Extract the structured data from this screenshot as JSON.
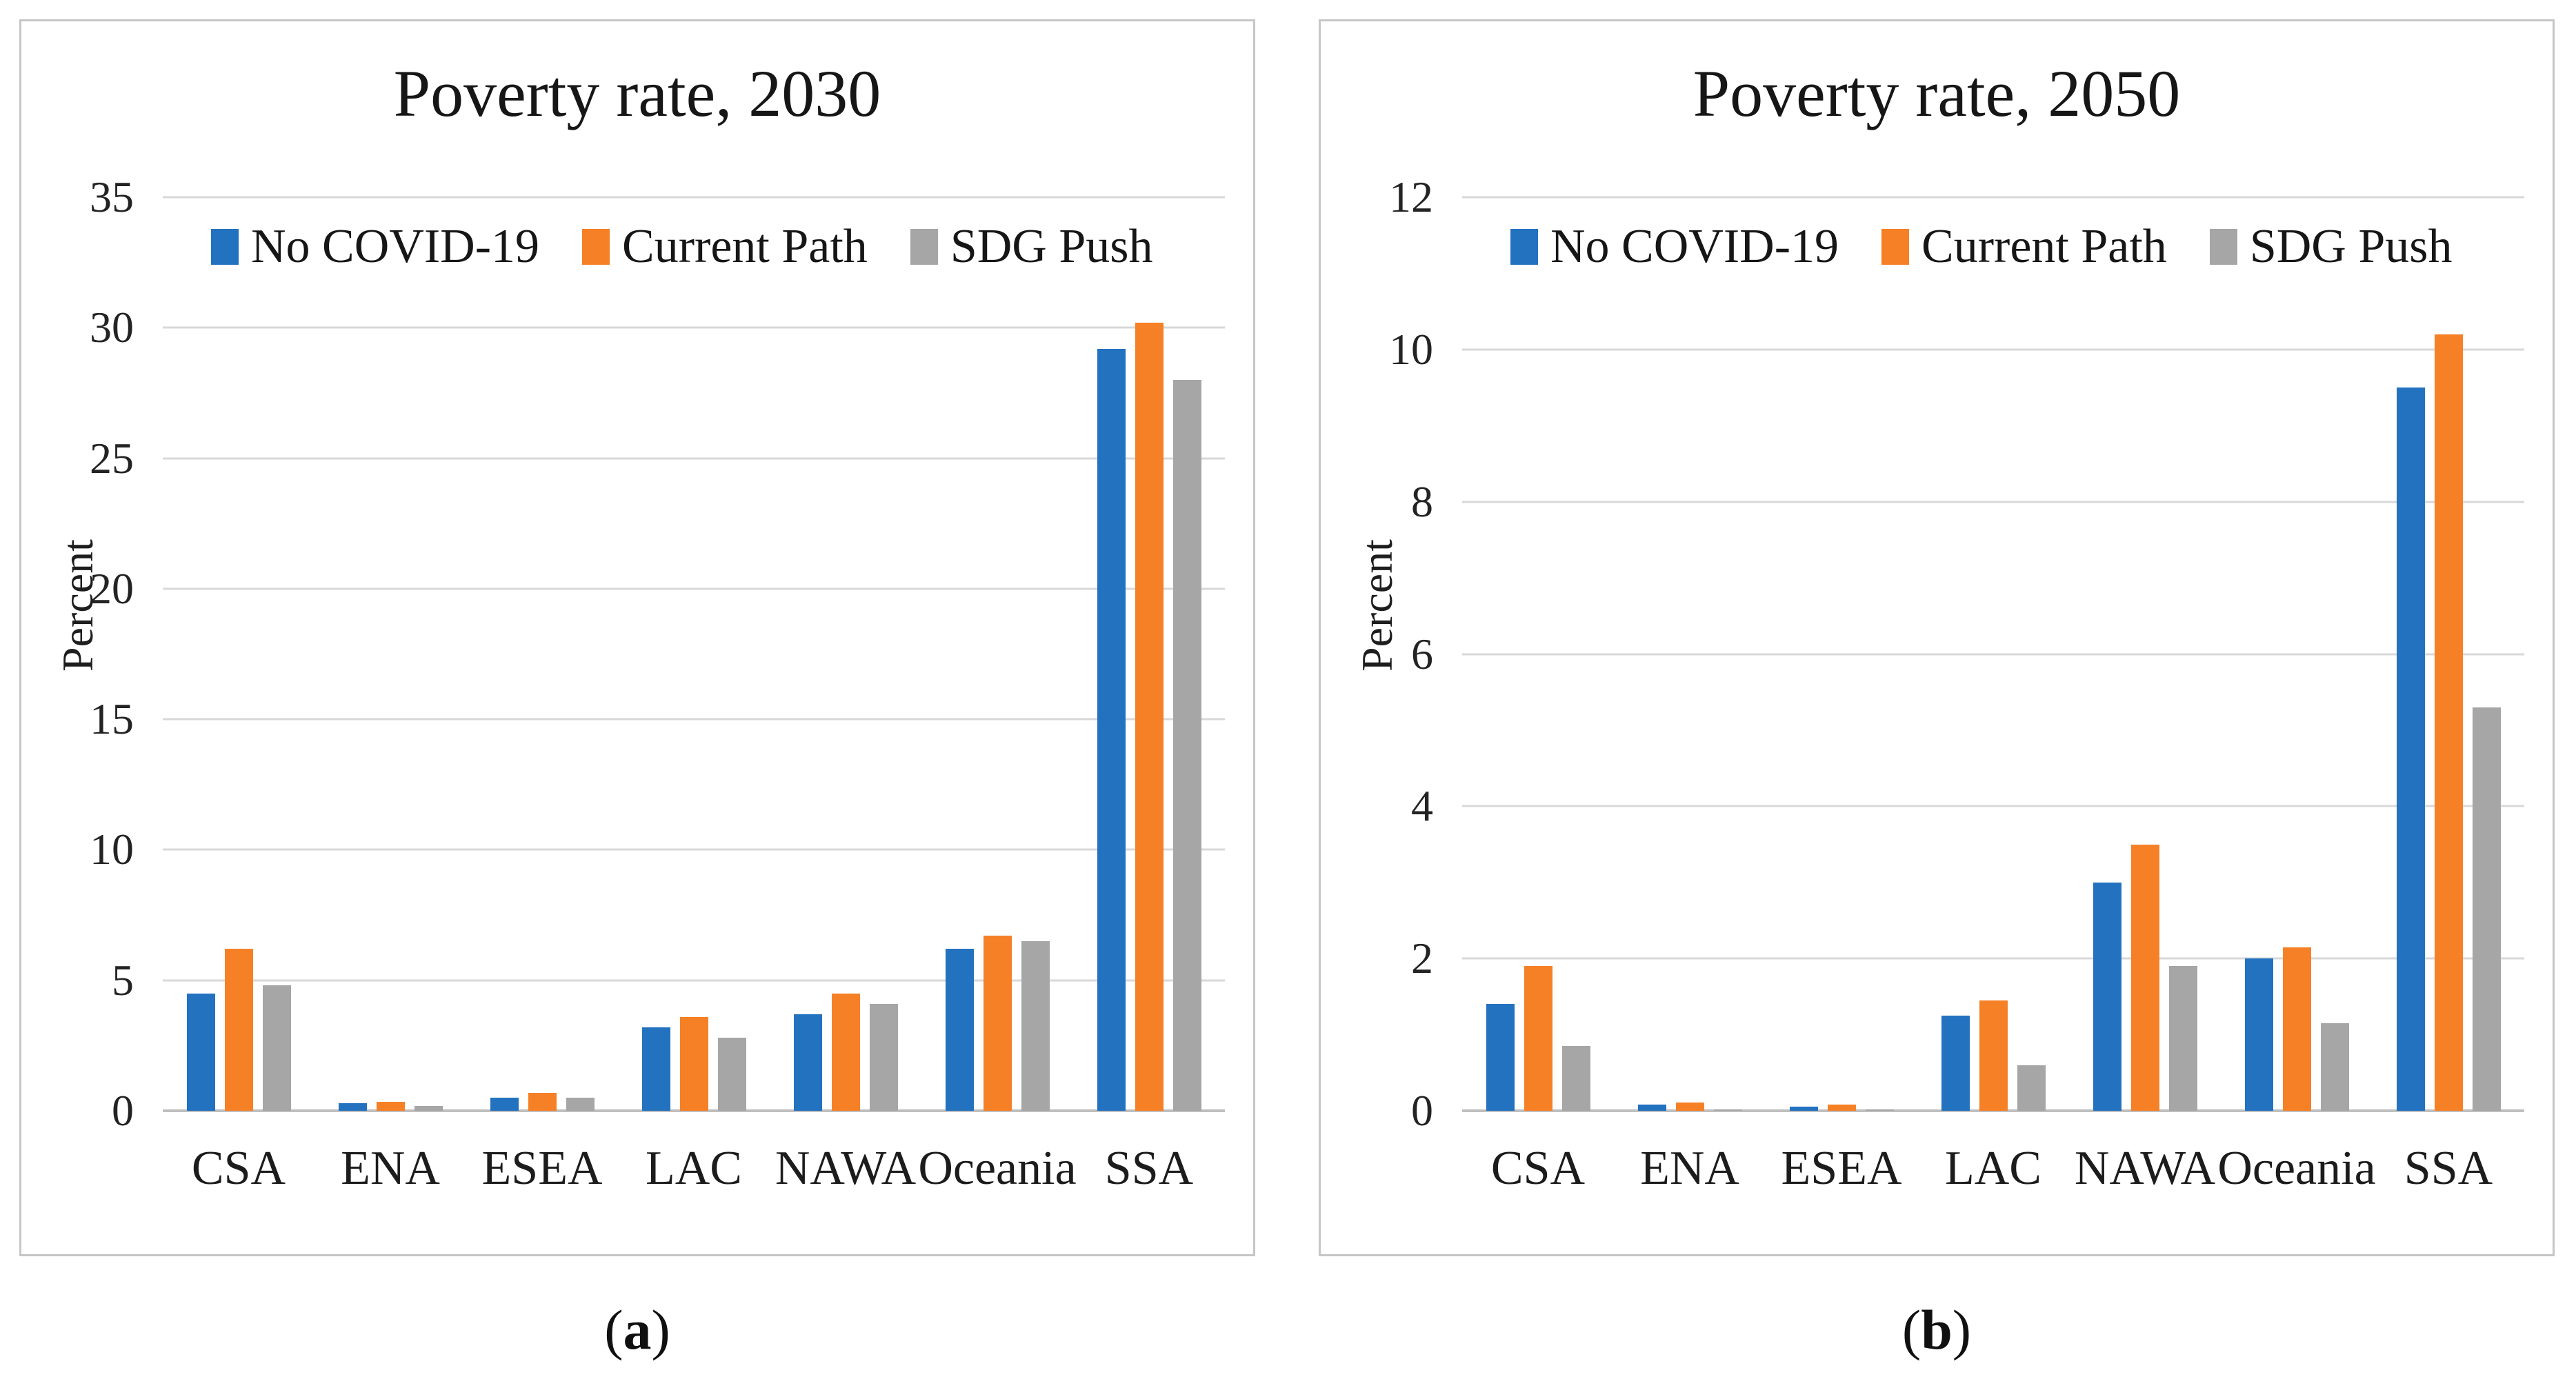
{
  "figure": {
    "captions": [
      {
        "open": "(",
        "letter": "a",
        "close": ")"
      },
      {
        "open": "(",
        "letter": "b",
        "close": ")"
      }
    ]
  },
  "colors": {
    "no_covid_blue": "#2372c0",
    "current_path_orange": "#f68026",
    "sdg_push_gray": "#a6a6a6",
    "gridline": "#d8d8d8",
    "zero_line": "#bfbfbf",
    "panel_border": "#c6c6c6"
  },
  "chart_data": [
    {
      "type": "bar",
      "title": "Poverty rate, 2030",
      "xlabel": "",
      "ylabel": "Percent",
      "ylim": [
        0,
        35
      ],
      "yticks": [
        0,
        5,
        10,
        15,
        20,
        25,
        30,
        35
      ],
      "grid": true,
      "legend_position": "top-left-inside",
      "categories": [
        "CSA",
        "ENA",
        "ESEA",
        "LAC",
        "NAWA",
        "Oceania",
        "SSA"
      ],
      "series": [
        {
          "name": "No COVID-19",
          "color": "#2372c0",
          "values": [
            4.5,
            0.3,
            0.5,
            3.2,
            3.7,
            6.2,
            29.2
          ]
        },
        {
          "name": "Current Path",
          "color": "#f68026",
          "values": [
            6.2,
            0.35,
            0.7,
            3.6,
            4.5,
            6.7,
            30.2
          ]
        },
        {
          "name": "SDG Push",
          "color": "#a6a6a6",
          "values": [
            4.8,
            0.18,
            0.5,
            2.8,
            4.1,
            6.5,
            28.0
          ]
        }
      ]
    },
    {
      "type": "bar",
      "title": "Poverty rate, 2050",
      "xlabel": "",
      "ylabel": "Percent",
      "ylim": [
        0,
        12
      ],
      "yticks": [
        0,
        2,
        4,
        6,
        8,
        10,
        12
      ],
      "grid": true,
      "legend_position": "top-left-inside",
      "categories": [
        "CSA",
        "ENA",
        "ESEA",
        "LAC",
        "NAWA",
        "Oceania",
        "SSA"
      ],
      "series": [
        {
          "name": "No COVID-19",
          "color": "#2372c0",
          "values": [
            1.4,
            0.08,
            0.05,
            1.25,
            3.0,
            2.0,
            9.5
          ]
        },
        {
          "name": "Current Path",
          "color": "#f68026",
          "values": [
            1.9,
            0.11,
            0.08,
            1.45,
            3.5,
            2.15,
            10.2
          ]
        },
        {
          "name": "SDG Push",
          "color": "#a6a6a6",
          "values": [
            0.85,
            0.02,
            0.02,
            0.6,
            1.9,
            1.15,
            5.3
          ]
        }
      ]
    }
  ]
}
